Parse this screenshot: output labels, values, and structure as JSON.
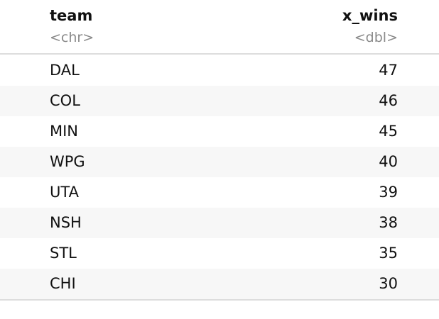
{
  "table": {
    "columns": [
      {
        "name": "team",
        "type": "<chr>"
      },
      {
        "name": "x_wins",
        "type": "<dbl>"
      }
    ],
    "rows": [
      [
        "DAL",
        47
      ],
      [
        "COL",
        46
      ],
      [
        "MIN",
        45
      ],
      [
        "WPG",
        40
      ],
      [
        "UTA",
        39
      ],
      [
        "NSH",
        38
      ],
      [
        "STL",
        35
      ],
      [
        "CHI",
        30
      ]
    ]
  }
}
